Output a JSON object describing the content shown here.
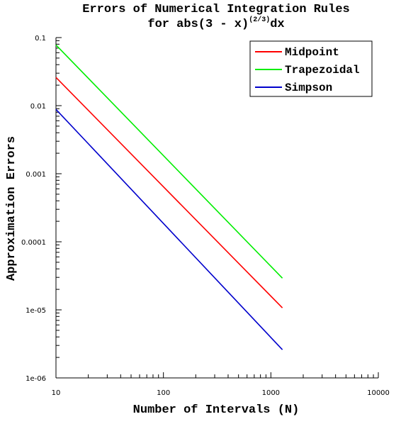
{
  "chart_data": {
    "type": "line",
    "title": "Errors of Numerical Integration Rules",
    "subtitle_main": "for abs(3 - x)",
    "subtitle_exponent": "(2/3)",
    "subtitle_suffix": "dx",
    "xlabel": "Number of Intervals (N)",
    "ylabel": "Approximation Errors",
    "xscale": "log",
    "yscale": "log",
    "xlim": [
      10,
      10000
    ],
    "ylim": [
      1e-06,
      0.1
    ],
    "xticks": [
      10,
      100,
      1000,
      10000
    ],
    "xtick_labels": [
      "10",
      "100",
      "1000",
      "10000"
    ],
    "yticks": [
      1e-06,
      1e-05,
      0.0001,
      0.001,
      0.01,
      0.1
    ],
    "ytick_labels": [
      "1e-06",
      "1e-05",
      "0.0001",
      "0.001",
      "0.01",
      "0.1"
    ],
    "legend_position": "top-right",
    "series": [
      {
        "name": "Midpoint",
        "color": "#ff0000",
        "x": [
          10,
          1280
        ],
        "y": [
          0.026,
          1.07e-05
        ]
      },
      {
        "name": "Trapezoidal",
        "color": "#00ee00",
        "x": [
          10,
          1280
        ],
        "y": [
          0.078,
          2.92e-05
        ]
      },
      {
        "name": "Simpson",
        "color": "#0000cc",
        "x": [
          10,
          1280
        ],
        "y": [
          0.0088,
          2.6e-06
        ]
      }
    ]
  }
}
